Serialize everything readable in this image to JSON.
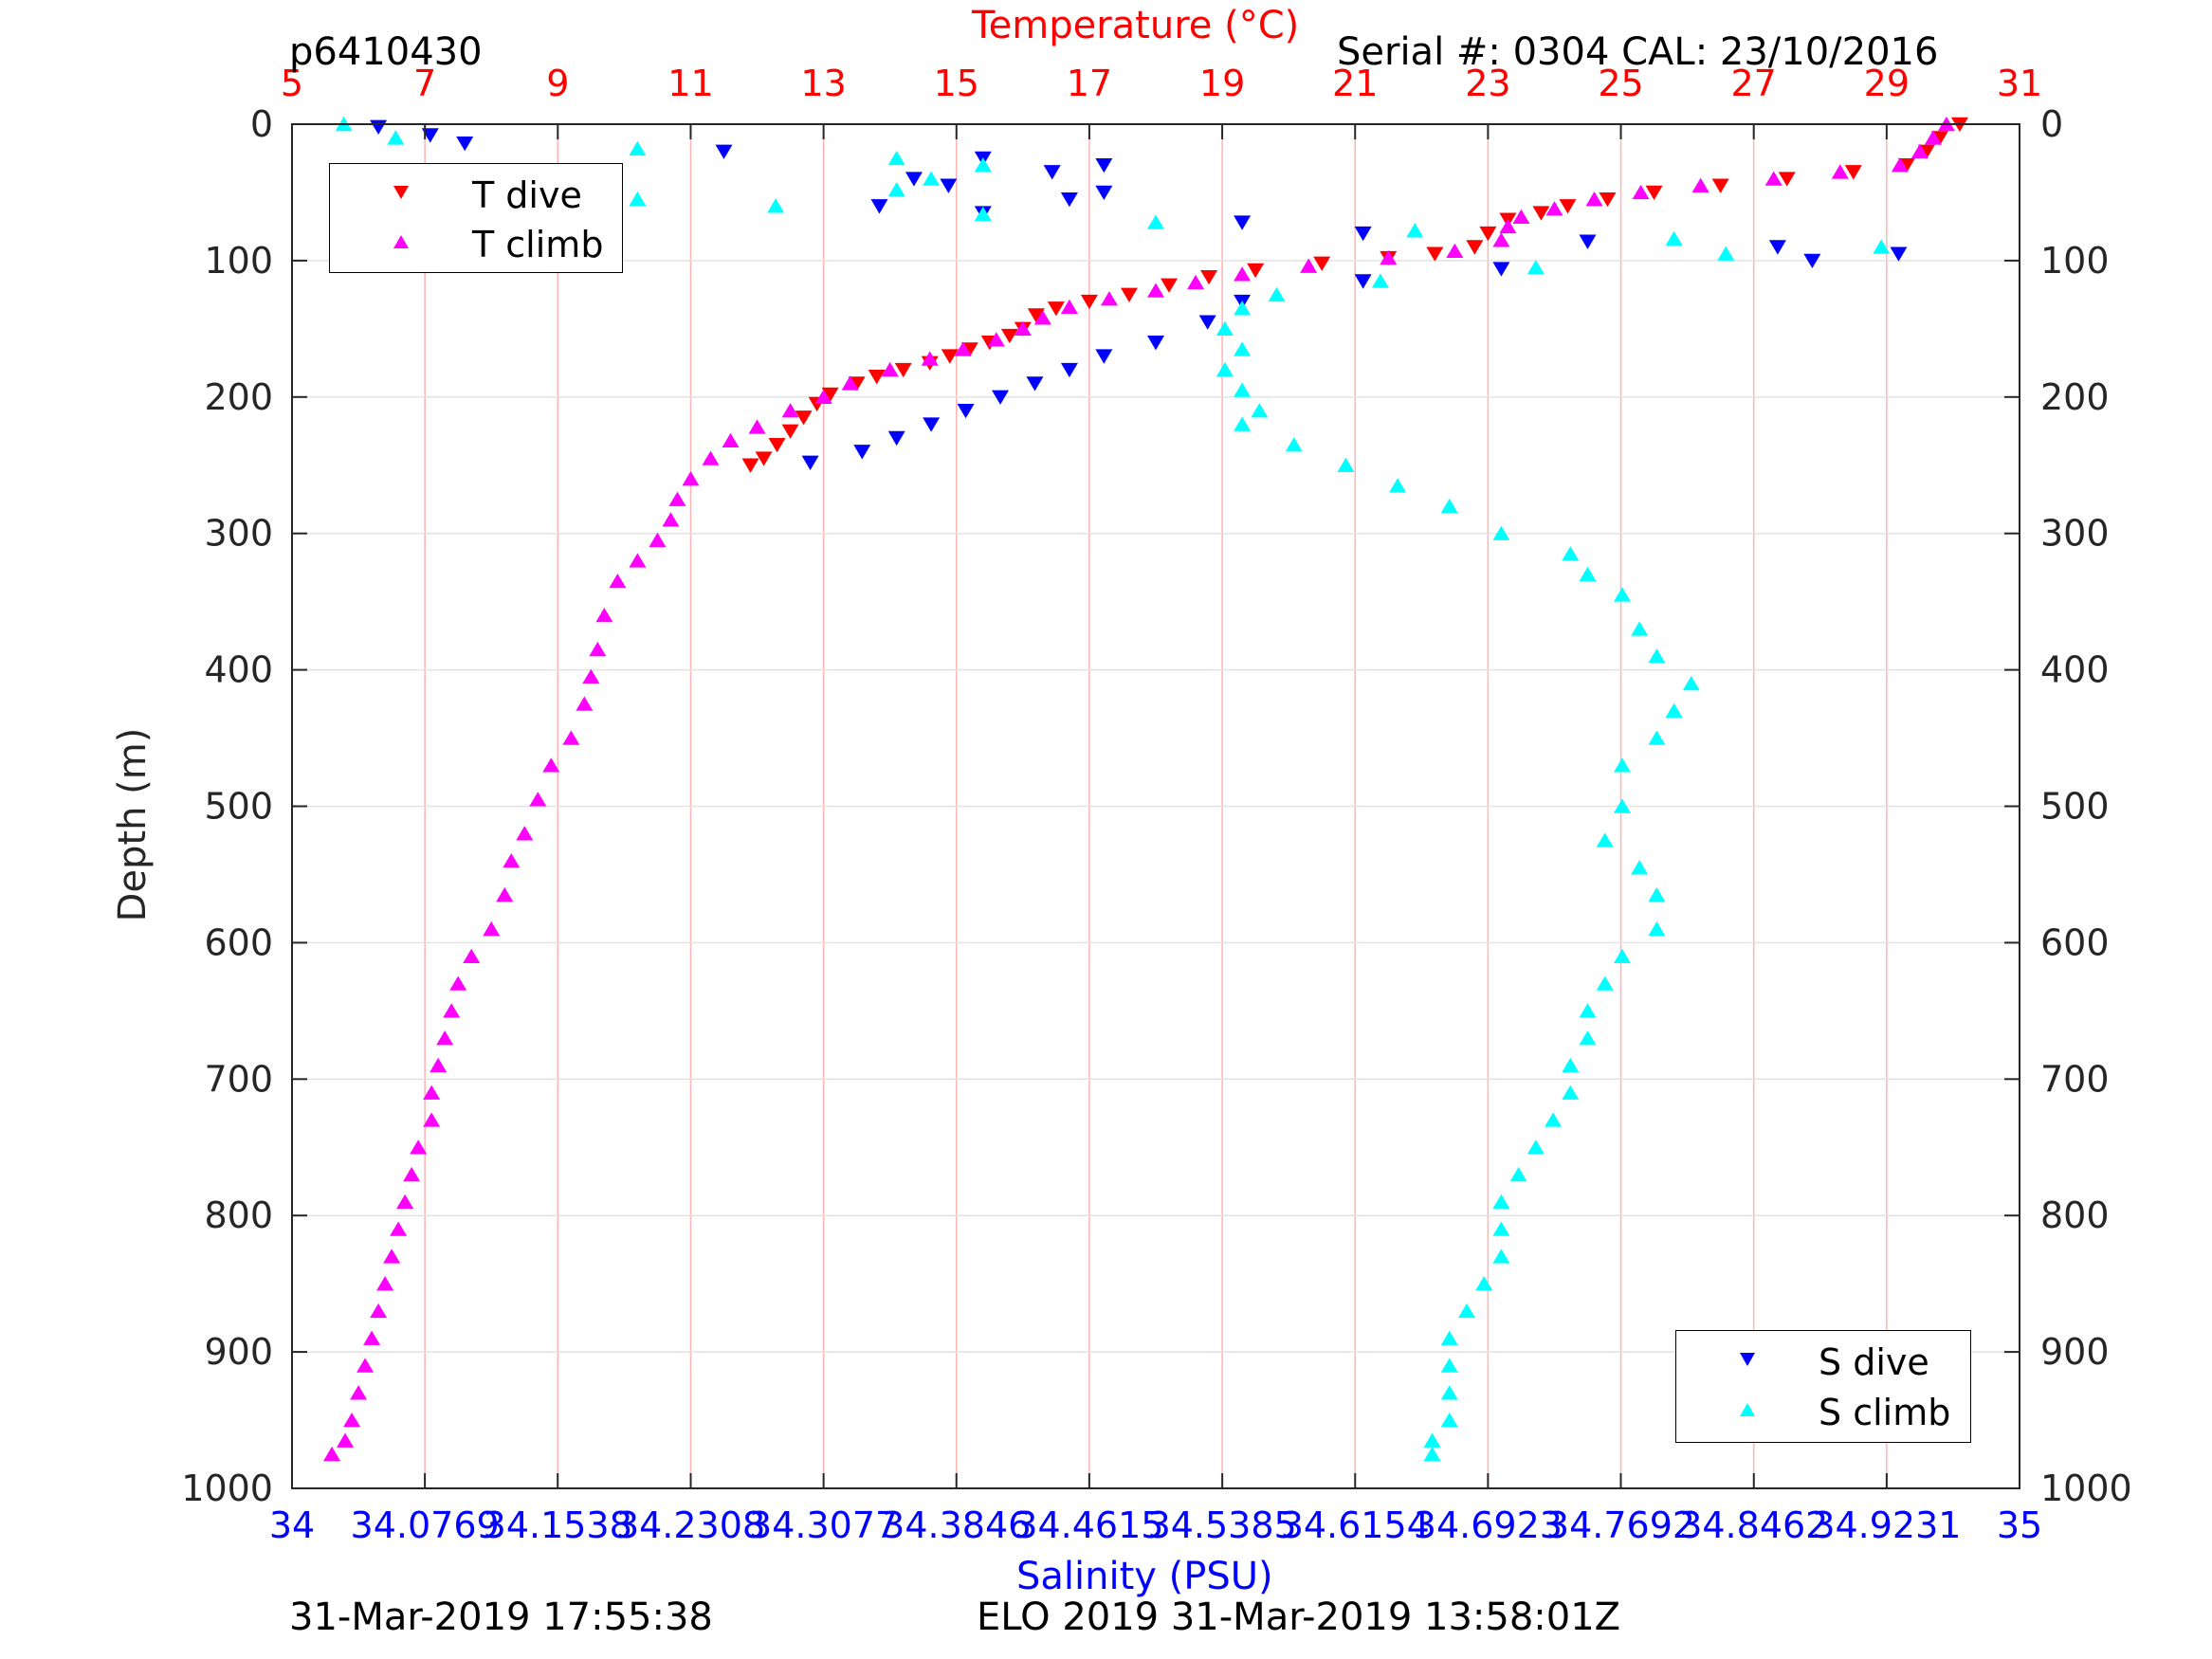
{
  "header": {
    "title_left": "p6410430",
    "title_right": "Serial #: 0304  CAL: 23/10/2016",
    "temperature_label": "Temperature (°C)"
  },
  "footer": {
    "left": "31-Mar-2019 17:55:38",
    "center": "ELO 2019 31-Mar-2019 13:58:01Z"
  },
  "colors": {
    "t_dive": "#ff0000",
    "t_climb": "#ff00ff",
    "s_dive": "#0000ff",
    "s_climb": "#00ffff",
    "temp_axis": "#ff0000",
    "sal_axis": "#0000ff",
    "grid": "#ffb3b3"
  },
  "legend_temperature": {
    "position": "top-left",
    "items": [
      "T dive",
      "T climb"
    ]
  },
  "legend_salinity": {
    "position": "bottom-right",
    "items": [
      "S dive",
      "S climb"
    ]
  },
  "chart_data": {
    "type": "scatter",
    "y_label": "Depth (m)",
    "y_reversed": true,
    "y_range": [
      0,
      1000
    ],
    "y_ticks": [
      "0",
      "100",
      "200",
      "300",
      "400",
      "500",
      "600",
      "700",
      "800",
      "900",
      "1000"
    ],
    "x_top_label": "Temperature (°C)",
    "x_top_range": [
      5,
      31
    ],
    "x_top_ticks": [
      "5",
      "7",
      "9",
      "11",
      "13",
      "15",
      "17",
      "19",
      "21",
      "23",
      "25",
      "27",
      "29",
      "31"
    ],
    "x_bottom_label": "Salinity (PSU)",
    "x_bottom_range": [
      34,
      35
    ],
    "x_bottom_ticks": [
      "34",
      "34.0769",
      "34.1538",
      "34.2308",
      "34.3077",
      "34.3846",
      "34.4615",
      "34.5385",
      "34.6154",
      "34.6923",
      "34.7692",
      "34.8462",
      "34.9231",
      "35"
    ],
    "grid": true,
    "series": [
      {
        "name": "T dive",
        "axis": "temperature",
        "marker": "triangle-down",
        "points": [
          [
            30.1,
            0
          ],
          [
            29.8,
            10
          ],
          [
            29.6,
            20
          ],
          [
            29.3,
            30
          ],
          [
            28.5,
            35
          ],
          [
            27.5,
            40
          ],
          [
            26.5,
            45
          ],
          [
            25.5,
            50
          ],
          [
            24.8,
            55
          ],
          [
            24.2,
            60
          ],
          [
            23.8,
            65
          ],
          [
            23.3,
            70
          ],
          [
            23.0,
            80
          ],
          [
            22.8,
            90
          ],
          [
            22.2,
            95
          ],
          [
            21.5,
            98
          ],
          [
            20.5,
            102
          ],
          [
            19.5,
            107
          ],
          [
            18.8,
            112
          ],
          [
            18.2,
            118
          ],
          [
            17.6,
            125
          ],
          [
            17.0,
            130
          ],
          [
            16.5,
            135
          ],
          [
            16.2,
            140
          ],
          [
            16.0,
            150
          ],
          [
            15.8,
            155
          ],
          [
            15.5,
            160
          ],
          [
            15.2,
            165
          ],
          [
            14.9,
            170
          ],
          [
            14.6,
            175
          ],
          [
            14.2,
            180
          ],
          [
            13.8,
            185
          ],
          [
            13.5,
            190
          ],
          [
            13.1,
            198
          ],
          [
            12.9,
            205
          ],
          [
            12.7,
            215
          ],
          [
            12.5,
            225
          ],
          [
            12.3,
            235
          ],
          [
            12.1,
            245
          ],
          [
            11.9,
            250
          ]
        ]
      },
      {
        "name": "T climb",
        "axis": "temperature",
        "marker": "triangle-up",
        "points": [
          [
            29.9,
            0
          ],
          [
            29.7,
            10
          ],
          [
            29.5,
            20
          ],
          [
            29.2,
            30
          ],
          [
            28.3,
            35
          ],
          [
            27.3,
            40
          ],
          [
            26.2,
            45
          ],
          [
            25.3,
            50
          ],
          [
            24.6,
            55
          ],
          [
            24.0,
            62
          ],
          [
            23.5,
            68
          ],
          [
            23.3,
            75
          ],
          [
            23.2,
            85
          ],
          [
            22.5,
            93
          ],
          [
            21.5,
            98
          ],
          [
            20.3,
            104
          ],
          [
            19.3,
            110
          ],
          [
            18.6,
            116
          ],
          [
            18.0,
            122
          ],
          [
            17.3,
            128
          ],
          [
            16.7,
            134
          ],
          [
            16.3,
            142
          ],
          [
            16.0,
            150
          ],
          [
            15.6,
            158
          ],
          [
            15.1,
            165
          ],
          [
            14.6,
            172
          ],
          [
            14.0,
            180
          ],
          [
            13.4,
            190
          ],
          [
            13.0,
            200
          ],
          [
            12.5,
            210
          ],
          [
            12.0,
            222
          ],
          [
            11.6,
            232
          ],
          [
            11.3,
            245
          ],
          [
            11.0,
            260
          ],
          [
            10.8,
            275
          ],
          [
            10.7,
            290
          ],
          [
            10.5,
            305
          ],
          [
            10.2,
            320
          ],
          [
            9.9,
            335
          ],
          [
            9.7,
            360
          ],
          [
            9.6,
            385
          ],
          [
            9.5,
            405
          ],
          [
            9.4,
            425
          ],
          [
            9.2,
            450
          ],
          [
            8.9,
            470
          ],
          [
            8.7,
            495
          ],
          [
            8.5,
            520
          ],
          [
            8.3,
            540
          ],
          [
            8.2,
            565
          ],
          [
            8.0,
            590
          ],
          [
            7.7,
            610
          ],
          [
            7.5,
            630
          ],
          [
            7.4,
            650
          ],
          [
            7.3,
            670
          ],
          [
            7.2,
            690
          ],
          [
            7.1,
            710
          ],
          [
            7.1,
            730
          ],
          [
            6.9,
            750
          ],
          [
            6.8,
            770
          ],
          [
            6.7,
            790
          ],
          [
            6.6,
            810
          ],
          [
            6.5,
            830
          ],
          [
            6.4,
            850
          ],
          [
            6.3,
            870
          ],
          [
            6.2,
            890
          ],
          [
            6.1,
            910
          ],
          [
            6.0,
            930
          ],
          [
            5.9,
            950
          ],
          [
            5.8,
            965
          ],
          [
            5.6,
            975
          ]
        ]
      },
      {
        "name": "S dive",
        "axis": "salinity",
        "marker": "triangle-down",
        "points": [
          [
            34.05,
            2
          ],
          [
            34.08,
            8
          ],
          [
            34.1,
            14
          ],
          [
            34.25,
            20
          ],
          [
            34.4,
            25
          ],
          [
            34.47,
            30
          ],
          [
            34.44,
            35
          ],
          [
            34.36,
            40
          ],
          [
            34.38,
            45
          ],
          [
            34.47,
            50
          ],
          [
            34.45,
            55
          ],
          [
            34.34,
            60
          ],
          [
            34.4,
            65
          ],
          [
            34.55,
            72
          ],
          [
            34.62,
            80
          ],
          [
            34.75,
            86
          ],
          [
            34.86,
            90
          ],
          [
            34.93,
            95
          ],
          [
            34.88,
            100
          ],
          [
            34.7,
            106
          ],
          [
            34.62,
            115
          ],
          [
            34.55,
            130
          ],
          [
            34.53,
            145
          ],
          [
            34.5,
            160
          ],
          [
            34.47,
            170
          ],
          [
            34.45,
            180
          ],
          [
            34.43,
            190
          ],
          [
            34.41,
            200
          ],
          [
            34.39,
            210
          ],
          [
            34.37,
            220
          ],
          [
            34.35,
            230
          ],
          [
            34.33,
            240
          ],
          [
            34.3,
            248
          ]
        ]
      },
      {
        "name": "S climb",
        "axis": "salinity",
        "marker": "triangle-up",
        "points": [
          [
            34.03,
            0
          ],
          [
            34.06,
            10
          ],
          [
            34.2,
            18
          ],
          [
            34.35,
            25
          ],
          [
            34.4,
            30
          ],
          [
            34.37,
            40
          ],
          [
            34.35,
            48
          ],
          [
            34.2,
            55
          ],
          [
            34.28,
            60
          ],
          [
            34.4,
            66
          ],
          [
            34.5,
            72
          ],
          [
            34.65,
            78
          ],
          [
            34.8,
            84
          ],
          [
            34.92,
            90
          ],
          [
            34.83,
            95
          ],
          [
            34.72,
            105
          ],
          [
            34.63,
            115
          ],
          [
            34.57,
            125
          ],
          [
            34.55,
            135
          ],
          [
            34.54,
            150
          ],
          [
            34.55,
            165
          ],
          [
            34.54,
            180
          ],
          [
            34.55,
            195
          ],
          [
            34.56,
            210
          ],
          [
            34.55,
            220
          ],
          [
            34.58,
            235
          ],
          [
            34.61,
            250
          ],
          [
            34.64,
            265
          ],
          [
            34.67,
            280
          ],
          [
            34.7,
            300
          ],
          [
            34.74,
            315
          ],
          [
            34.75,
            330
          ],
          [
            34.77,
            345
          ],
          [
            34.78,
            370
          ],
          [
            34.79,
            390
          ],
          [
            34.81,
            410
          ],
          [
            34.8,
            430
          ],
          [
            34.79,
            450
          ],
          [
            34.77,
            470
          ],
          [
            34.77,
            500
          ],
          [
            34.76,
            525
          ],
          [
            34.78,
            545
          ],
          [
            34.79,
            565
          ],
          [
            34.79,
            590
          ],
          [
            34.77,
            610
          ],
          [
            34.76,
            630
          ],
          [
            34.75,
            650
          ],
          [
            34.75,
            670
          ],
          [
            34.74,
            690
          ],
          [
            34.74,
            710
          ],
          [
            34.73,
            730
          ],
          [
            34.72,
            750
          ],
          [
            34.71,
            770
          ],
          [
            34.7,
            790
          ],
          [
            34.7,
            810
          ],
          [
            34.7,
            830
          ],
          [
            34.69,
            850
          ],
          [
            34.68,
            870
          ],
          [
            34.67,
            890
          ],
          [
            34.67,
            910
          ],
          [
            34.67,
            930
          ],
          [
            34.67,
            950
          ],
          [
            34.66,
            965
          ],
          [
            34.66,
            975
          ]
        ]
      }
    ]
  }
}
